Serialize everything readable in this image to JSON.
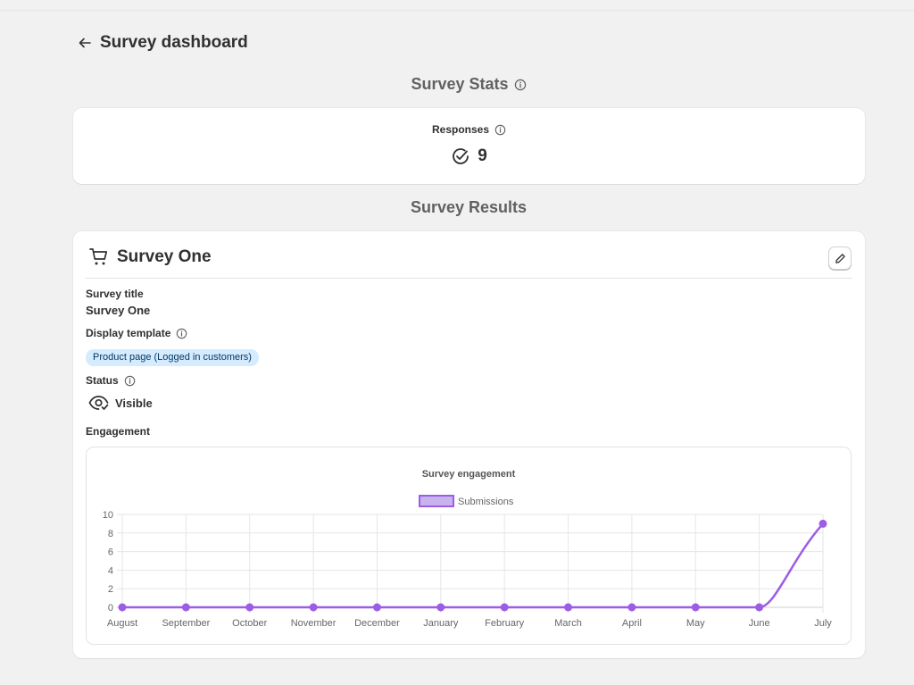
{
  "header": {
    "title": "Survey dashboard"
  },
  "stats": {
    "title": "Survey Stats",
    "responses_label": "Responses",
    "responses_value": "9"
  },
  "results": {
    "title": "Survey Results",
    "survey_name": "Survey One",
    "survey_title_label": "Survey title",
    "survey_title_value": "Survey One",
    "display_template_label": "Display template",
    "display_template_value": "Product page (Logged in customers)",
    "status_label": "Status",
    "status_value": "Visible",
    "engagement_label": "Engagement"
  },
  "colors": {
    "accent": "#9b5de5",
    "badge_bg": "#d5ebff",
    "page_bg": "#f1f1f1"
  },
  "chart_data": {
    "type": "line",
    "title": "Survey engagement",
    "categories": [
      "August",
      "September",
      "October",
      "November",
      "December",
      "January",
      "February",
      "March",
      "April",
      "May",
      "June",
      "July"
    ],
    "series": [
      {
        "name": "Submissions",
        "values": [
          0,
          0,
          0,
          0,
          0,
          0,
          0,
          0,
          0,
          0,
          0,
          9
        ],
        "color": "#9b5de5"
      }
    ],
    "ylim": [
      0,
      10
    ],
    "yticks": [
      0,
      2,
      4,
      6,
      8,
      10
    ],
    "grid": true,
    "legend": "top"
  }
}
